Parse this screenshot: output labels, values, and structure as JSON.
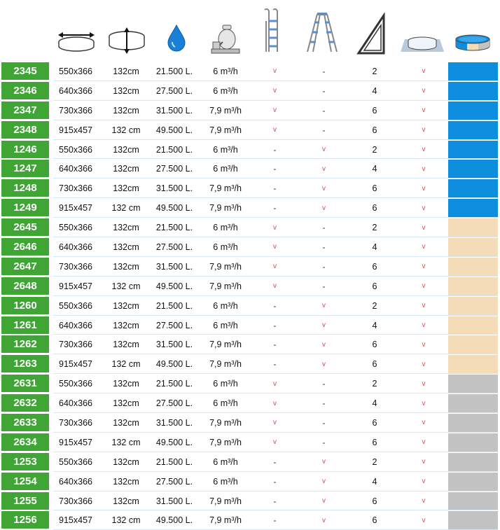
{
  "colors": {
    "code_bg": "#3fa636",
    "check": "#e0444c",
    "blue": "#0d8fdd",
    "sand": "#f4dcb8",
    "grey": "#c2c2c2"
  },
  "header_icons": [
    "diameter-arrows-icon",
    "height-arrows-icon",
    "water-drop-icon",
    "sand-filter-icon",
    "ladder-icon",
    "platform-ladder-icon",
    "wall-support-icon",
    "pool-cover-icon",
    "liner-color-icon"
  ],
  "rows": [
    {
      "code": "2345",
      "size": "550x366",
      "height": "132cm",
      "volume": "21.500 L.",
      "filter": "6 m³/h",
      "ladder1": "v",
      "ladder2": "-",
      "walls": "2",
      "cover": "v",
      "color": "blue"
    },
    {
      "code": "2346",
      "size": "640x366",
      "height": "132cm",
      "volume": "27.500 L.",
      "filter": "6 m³/h",
      "ladder1": "v",
      "ladder2": "-",
      "walls": "4",
      "cover": "v",
      "color": "blue"
    },
    {
      "code": "2347",
      "size": "730x366",
      "height": "132cm",
      "volume": "31.500 L.",
      "filter": "7,9 m³/h",
      "ladder1": "v",
      "ladder2": "-",
      "walls": "6",
      "cover": "v",
      "color": "blue"
    },
    {
      "code": "2348",
      "size": "915x457",
      "height": "132 cm",
      "volume": "49.500 L.",
      "filter": "7,9 m³/h",
      "ladder1": "v",
      "ladder2": "-",
      "walls": "6",
      "cover": "v",
      "color": "blue"
    },
    {
      "code": "1246",
      "size": "550x366",
      "height": "132cm",
      "volume": "21.500 L.",
      "filter": "6 m³/h",
      "ladder1": "-",
      "ladder2": "v",
      "walls": "2",
      "cover": "v",
      "color": "blue"
    },
    {
      "code": "1247",
      "size": "640x366",
      "height": "132cm",
      "volume": "27.500 L.",
      "filter": "6 m³/h",
      "ladder1": "-",
      "ladder2": "v",
      "walls": "4",
      "cover": "v",
      "color": "blue"
    },
    {
      "code": "1248",
      "size": "730x366",
      "height": "132cm",
      "volume": "31.500 L.",
      "filter": "7,9 m³/h",
      "ladder1": "-",
      "ladder2": "v",
      "walls": "6",
      "cover": "v",
      "color": "blue"
    },
    {
      "code": "1249",
      "size": "915x457",
      "height": "132 cm",
      "volume": "49.500 L.",
      "filter": "7,9 m³/h",
      "ladder1": "-",
      "ladder2": "v",
      "walls": "6",
      "cover": "v",
      "color": "blue"
    },
    {
      "code": "2645",
      "size": "550x366",
      "height": "132cm",
      "volume": "21.500 L.",
      "filter": "6 m³/h",
      "ladder1": "v",
      "ladder2": "-",
      "walls": "2",
      "cover": "v",
      "color": "sand"
    },
    {
      "code": "2646",
      "size": "640x366",
      "height": "132cm",
      "volume": "27.500 L.",
      "filter": "6 m³/h",
      "ladder1": "v",
      "ladder2": "-",
      "walls": "4",
      "cover": "v",
      "color": "sand"
    },
    {
      "code": "2647",
      "size": "730x366",
      "height": "132cm",
      "volume": "31.500 L.",
      "filter": "7,9 m³/h",
      "ladder1": "v",
      "ladder2": "-",
      "walls": "6",
      "cover": "v",
      "color": "sand"
    },
    {
      "code": "2648",
      "size": "915x457",
      "height": "132 cm",
      "volume": "49.500 L.",
      "filter": "7,9 m³/h",
      "ladder1": "v",
      "ladder2": "-",
      "walls": "6",
      "cover": "v",
      "color": "sand"
    },
    {
      "code": "1260",
      "size": "550x366",
      "height": "132cm",
      "volume": "21.500 L.",
      "filter": "6 m³/h",
      "ladder1": "-",
      "ladder2": "v",
      "walls": "2",
      "cover": "v",
      "color": "sand"
    },
    {
      "code": "1261",
      "size": "640x366",
      "height": "132cm",
      "volume": "27.500 L.",
      "filter": "6 m³/h",
      "ladder1": "-",
      "ladder2": "v",
      "walls": "4",
      "cover": "v",
      "color": "sand"
    },
    {
      "code": "1262",
      "size": "730x366",
      "height": "132cm",
      "volume": "31.500 L.",
      "filter": "7,9 m³/h",
      "ladder1": "-",
      "ladder2": "v",
      "walls": "6",
      "cover": "v",
      "color": "sand"
    },
    {
      "code": "1263",
      "size": "915x457",
      "height": "132 cm",
      "volume": "49.500 L.",
      "filter": "7,9 m³/h",
      "ladder1": "-",
      "ladder2": "v",
      "walls": "6",
      "cover": "v",
      "color": "sand"
    },
    {
      "code": "2631",
      "size": "550x366",
      "height": "132cm",
      "volume": "21.500 L.",
      "filter": "6 m³/h",
      "ladder1": "v",
      "ladder2": "-",
      "walls": "2",
      "cover": "v",
      "color": "grey"
    },
    {
      "code": "2632",
      "size": "640x366",
      "height": "132cm",
      "volume": "27.500 L.",
      "filter": "6 m³/h",
      "ladder1": "v",
      "ladder2": "-",
      "walls": "4",
      "cover": "v",
      "color": "grey"
    },
    {
      "code": "2633",
      "size": "730x366",
      "height": "132cm",
      "volume": "31.500 L.",
      "filter": "7,9 m³/h",
      "ladder1": "v",
      "ladder2": "-",
      "walls": "6",
      "cover": "v",
      "color": "grey"
    },
    {
      "code": "2634",
      "size": "915x457",
      "height": "132 cm",
      "volume": "49.500 L.",
      "filter": "7,9 m³/h",
      "ladder1": "v",
      "ladder2": "-",
      "walls": "6",
      "cover": "v",
      "color": "grey"
    },
    {
      "code": "1253",
      "size": "550x366",
      "height": "132cm",
      "volume": "21.500 L.",
      "filter": "6 m³/h",
      "ladder1": "-",
      "ladder2": "v",
      "walls": "2",
      "cover": "v",
      "color": "grey"
    },
    {
      "code": "1254",
      "size": "640x366",
      "height": "132cm",
      "volume": "27.500 L.",
      "filter": "6 m³/h",
      "ladder1": "-",
      "ladder2": "v",
      "walls": "4",
      "cover": "v",
      "color": "grey"
    },
    {
      "code": "1255",
      "size": "730x366",
      "height": "132cm",
      "volume": "31.500 L.",
      "filter": "7,9 m³/h",
      "ladder1": "-",
      "ladder2": "v",
      "walls": "6",
      "cover": "v",
      "color": "grey"
    },
    {
      "code": "1256",
      "size": "915x457",
      "height": "132 cm",
      "volume": "49.500 L.",
      "filter": "7,9 m³/h",
      "ladder1": "-",
      "ladder2": "v",
      "walls": "6",
      "cover": "v",
      "color": "grey"
    }
  ]
}
